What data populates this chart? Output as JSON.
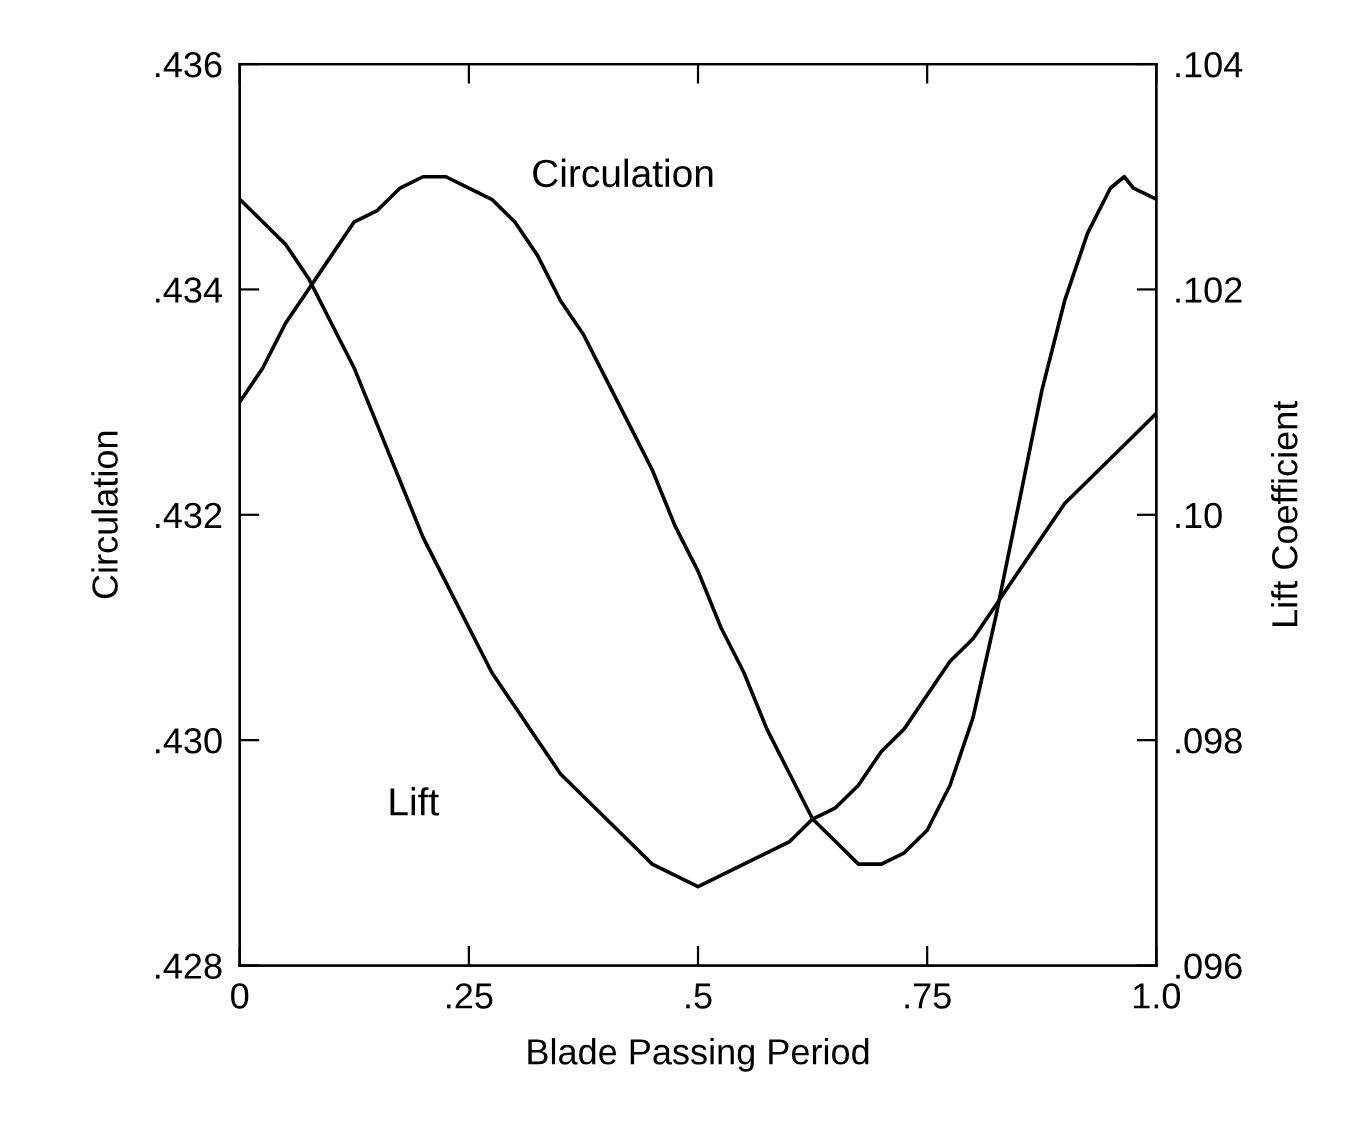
{
  "chart_data": {
    "type": "line",
    "xlabel": "Blade Passing Period",
    "ylabel": "Circulation",
    "y2label": "Lift Coefficient",
    "xlim": [
      0,
      1.0
    ],
    "xticks": [
      {
        "value": 0,
        "label": "0"
      },
      {
        "value": 0.25,
        "label": ".25"
      },
      {
        "value": 0.5,
        "label": ".5"
      },
      {
        "value": 0.75,
        "label": ".75"
      },
      {
        "value": 1.0,
        "label": "1.0"
      }
    ],
    "ylim": [
      0.428,
      0.436
    ],
    "yticks": [
      {
        "value": 0.428,
        "label": ".428"
      },
      {
        "value": 0.43,
        "label": ".430"
      },
      {
        "value": 0.432,
        "label": ".432"
      },
      {
        "value": 0.434,
        "label": ".434"
      },
      {
        "value": 0.436,
        "label": ".436"
      }
    ],
    "y2lim": [
      0.096,
      0.104
    ],
    "y2ticks": [
      {
        "value": 0.096,
        "label": ".096"
      },
      {
        "value": 0.098,
        "label": ".098"
      },
      {
        "value": 0.1,
        "label": ".10"
      },
      {
        "value": 0.102,
        "label": ".102"
      },
      {
        "value": 0.104,
        "label": ".104"
      }
    ],
    "grid": false,
    "legend": false,
    "marker": "none",
    "line_style": "solid",
    "series": [
      {
        "name": "Circulation",
        "color": "#000000",
        "x": [
          0,
          0.025,
          0.05,
          0.075,
          0.1,
          0.125,
          0.15,
          0.175,
          0.2,
          0.225,
          0.25,
          0.275,
          0.3,
          0.325,
          0.35,
          0.375,
          0.4,
          0.425,
          0.45,
          0.475,
          0.5,
          0.525,
          0.55,
          0.575,
          0.6,
          0.625,
          0.65,
          0.675,
          0.7,
          0.725,
          0.75,
          0.775,
          0.8,
          0.825,
          0.85,
          0.875,
          0.9,
          0.925,
          0.95,
          0.965,
          0.975,
          1.0
        ],
        "values": [
          0.433,
          0.4333,
          0.4337,
          0.434,
          0.4343,
          0.4346,
          0.4347,
          0.4349,
          0.435,
          0.435,
          0.4349,
          0.4348,
          0.4346,
          0.4343,
          0.4339,
          0.4336,
          0.4332,
          0.4328,
          0.4324,
          0.4319,
          0.4315,
          0.431,
          0.4306,
          0.4301,
          0.4297,
          0.4293,
          0.4291,
          0.4289,
          0.4289,
          0.429,
          0.4292,
          0.4296,
          0.4302,
          0.4311,
          0.4321,
          0.4331,
          0.4339,
          0.4345,
          0.4349,
          0.435,
          0.4349,
          0.4348
        ]
      },
      {
        "name": "Lift",
        "color": "#000000",
        "axis": "y2",
        "x": [
          0,
          0.025,
          0.05,
          0.075,
          0.1,
          0.125,
          0.15,
          0.175,
          0.2,
          0.225,
          0.25,
          0.275,
          0.3,
          0.325,
          0.35,
          0.375,
          0.4,
          0.425,
          0.45,
          0.475,
          0.5,
          0.525,
          0.55,
          0.575,
          0.6,
          0.625,
          0.65,
          0.675,
          0.7,
          0.725,
          0.75,
          0.775,
          0.8,
          0.825,
          0.85,
          0.875,
          0.9,
          0.925,
          0.95,
          0.975,
          1.0
        ],
        "values": [
          0.1028,
          0.1026,
          0.1024,
          0.1021,
          0.1017,
          0.1013,
          0.1008,
          0.1003,
          0.0998,
          0.0994,
          0.099,
          0.0986,
          0.0983,
          0.098,
          0.0977,
          0.0975,
          0.0973,
          0.0971,
          0.0969,
          0.0968,
          0.0967,
          0.0968,
          0.0969,
          0.097,
          0.0971,
          0.0973,
          0.0974,
          0.0976,
          0.0979,
          0.0981,
          0.0984,
          0.0987,
          0.0989,
          0.0992,
          0.0995,
          0.0998,
          0.1001,
          0.1003,
          0.1005,
          0.1007,
          0.1009
        ]
      }
    ]
  }
}
